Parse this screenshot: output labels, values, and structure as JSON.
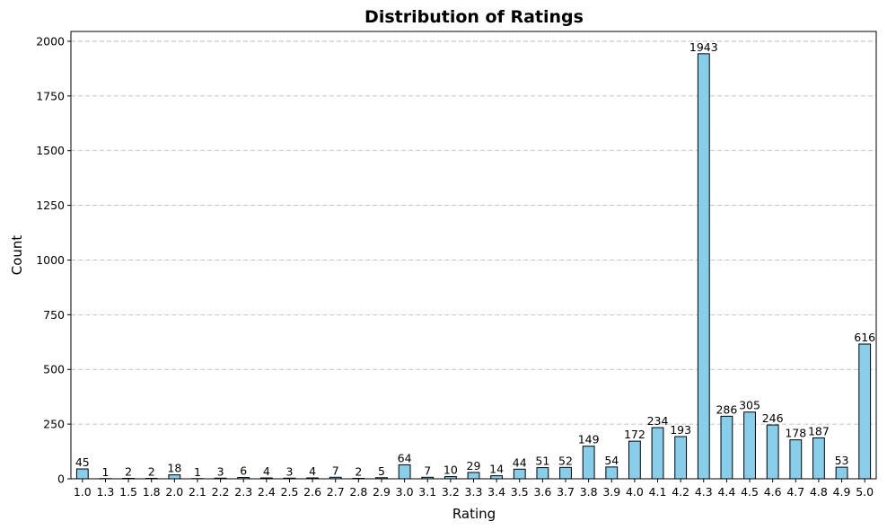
{
  "chart_data": {
    "type": "bar",
    "title": "Distribution of Ratings",
    "xlabel": "Rating",
    "ylabel": "Count",
    "ylim": [
      0,
      2045
    ],
    "yticks": [
      0,
      250,
      500,
      750,
      1000,
      1250,
      1500,
      1750,
      2000
    ],
    "grid": "y-dashed",
    "bar_color": "#87ceeb",
    "edge_color": "#000000",
    "categories": [
      "1.0",
      "1.3",
      "1.5",
      "1.8",
      "2.0",
      "2.1",
      "2.2",
      "2.3",
      "2.4",
      "2.5",
      "2.6",
      "2.7",
      "2.8",
      "2.9",
      "3.0",
      "3.1",
      "3.2",
      "3.3",
      "3.4",
      "3.5",
      "3.6",
      "3.7",
      "3.8",
      "3.9",
      "4.0",
      "4.1",
      "4.2",
      "4.3",
      "4.4",
      "4.5",
      "4.6",
      "4.7",
      "4.8",
      "4.9",
      "5.0"
    ],
    "values": [
      45,
      1,
      2,
      2,
      18,
      1,
      3,
      6,
      4,
      3,
      4,
      7,
      2,
      5,
      64,
      7,
      10,
      29,
      14,
      44,
      51,
      52,
      149,
      54,
      172,
      234,
      193,
      1943,
      286,
      305,
      246,
      178,
      187,
      53,
      616
    ]
  }
}
